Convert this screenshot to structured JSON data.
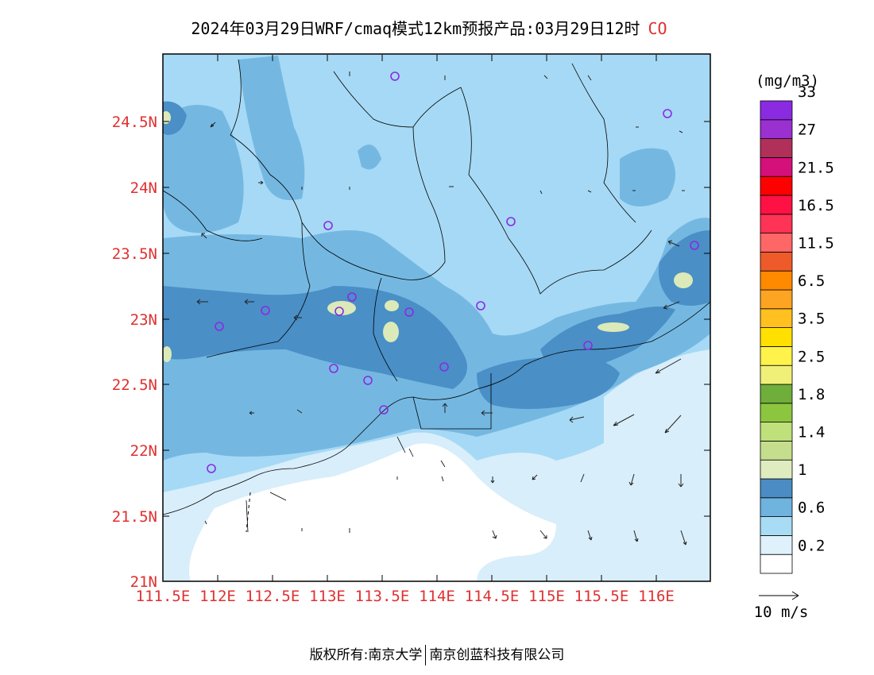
{
  "title": {
    "main": "2024年03月29日WRF/cmaq模式12km预报产品:03月29日12时",
    "species": "CO"
  },
  "map": {
    "lon_labels": [
      "111.5E",
      "112E",
      "112.5E",
      "113E",
      "113.5E",
      "114E",
      "114.5E",
      "115E",
      "115.5E",
      "116E"
    ],
    "lat_labels": [
      "24.5N",
      "24N",
      "23.5N",
      "23N",
      "22.5N",
      "22N",
      "21.5N",
      "21N"
    ],
    "extent": {
      "lon_min": 111.5,
      "lon_max": 116.55,
      "lat_min": 21.0,
      "lat_max": 25.0
    },
    "colors": {
      "lvl_02": "#d8eefa",
      "lvl_06": "#a6d9f5",
      "lvl_08": "#74b8e2",
      "lvl_1": "#4a8fc6",
      "lvl_12": "#dce9b9",
      "stations": "#8a2be2"
    }
  },
  "colorbar": {
    "unit": "(mg/m3)",
    "colors": [
      "#ffffff",
      "#dff1fb",
      "#a8dcf5",
      "#6fb3df",
      "#4a8cc3",
      "#dfecc0",
      "#c5de8e",
      "#bfe07a",
      "#8cc63f",
      "#6fae3a",
      "#f0f078",
      "#fff24a",
      "#ffe000",
      "#ffc020",
      "#fda522",
      "#ff8a00",
      "#ee5a2a",
      "#ff6666",
      "#ff3355",
      "#ff1144",
      "#ff0000",
      "#d4107a",
      "#b0305a",
      "#9b30d0",
      "#8a2be2"
    ],
    "labels": [
      "0.2",
      "0.6",
      "1",
      "1.4",
      "1.8",
      "2.5",
      "3.5",
      "6.5",
      "11.5",
      "16.5",
      "21.5",
      "27",
      "33"
    ]
  },
  "wind_legend": {
    "label": "10 m/s"
  },
  "footer": {
    "left": "版权所有:南京大学",
    "right": "南京创蓝科技有限公司"
  }
}
